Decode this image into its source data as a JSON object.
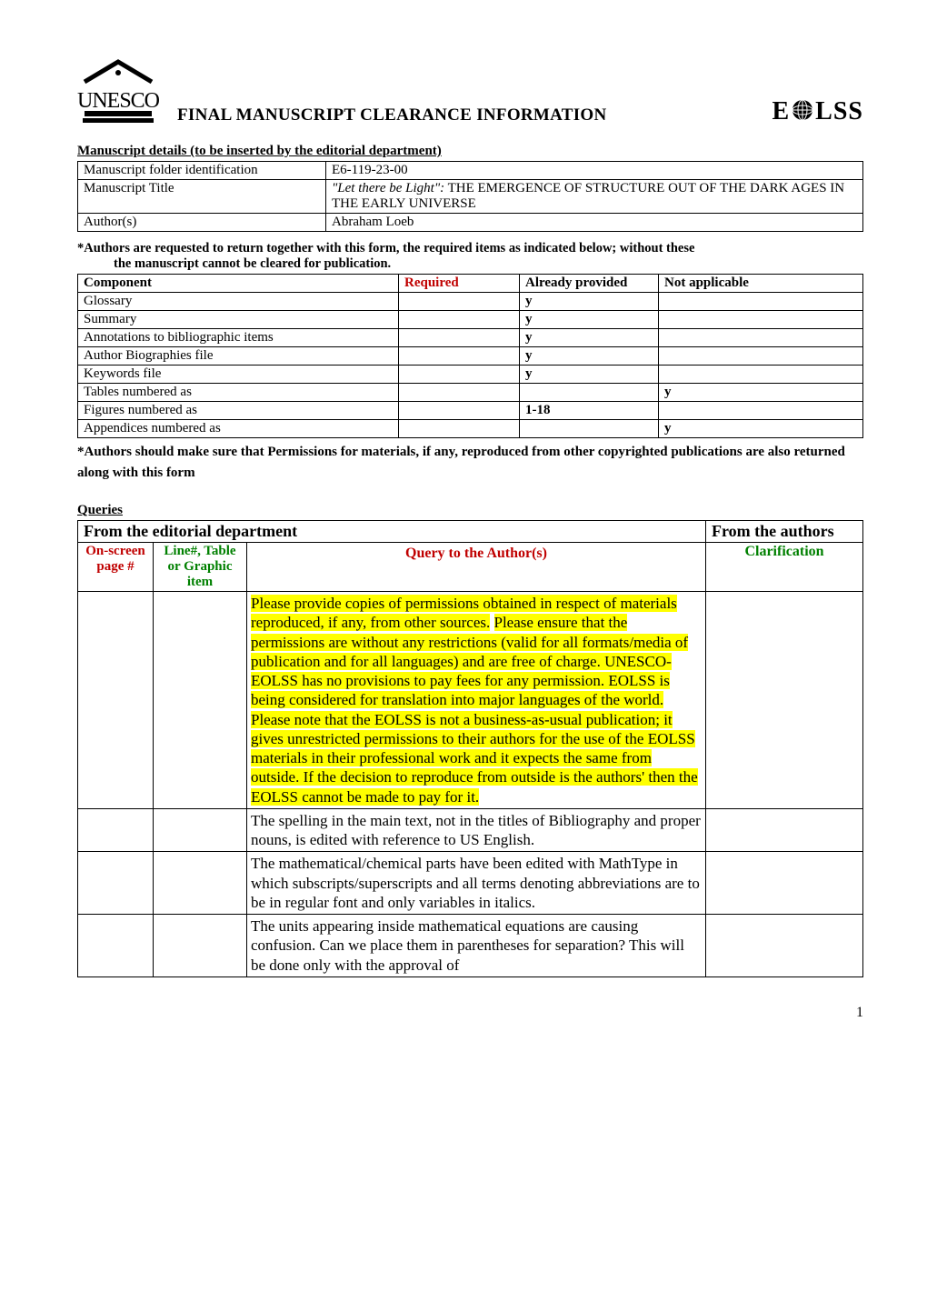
{
  "header": {
    "page_title": "FINAL MANUSCRIPT CLEARANCE INFORMATION",
    "eolss_prefix": "E",
    "eolss_suffix": "LSS"
  },
  "details": {
    "heading": "Manuscript details (to be inserted by the editorial department)",
    "rows": [
      {
        "label": "Manuscript folder identification",
        "value": "E6-119-23-00"
      },
      {
        "label": "Manuscript Title",
        "value_italic": "\"Let there be Light\":",
        "value_rest": " THE EMERGENCE OF STRUCTURE OUT OF THE DARK AGES IN THE EARLY UNIVERSE"
      },
      {
        "label": "Author(s)",
        "value": "Abraham Loeb"
      }
    ]
  },
  "instructions": {
    "line1": "*Authors are requested to return together with this form, the required items as  indicated below; without these",
    "line2": "the manuscript cannot be cleared for publication."
  },
  "components": {
    "headers": [
      "Component",
      "Required",
      "Already provided",
      "Not applicable"
    ],
    "header_colors": [
      "#000000",
      "#c00000",
      "#000000",
      "#000000"
    ],
    "rows": [
      {
        "c0": "Glossary",
        "c1": "",
        "c2": "y",
        "c3": ""
      },
      {
        "c0": "Summary",
        "c1": "",
        "c2": "y",
        "c3": ""
      },
      {
        "c0": "Annotations to bibliographic items",
        "c1": "",
        "c2": "y",
        "c3": ""
      },
      {
        "c0": "Author Biographies file",
        "c1": "",
        "c2": "y",
        "c3": ""
      },
      {
        "c0": "Keywords file",
        "c1": "",
        "c2": "y",
        "c3": ""
      },
      {
        "c0": "Tables numbered as",
        "c1": "",
        "c2": "",
        "c3": "y"
      },
      {
        "c0": "Figures numbered as",
        "c1": "",
        "c2": "1-18",
        "c3": ""
      },
      {
        "c0": "Appendices numbered as",
        "c1": "",
        "c2": "",
        "c3": "y"
      }
    ]
  },
  "perm_note": "*Authors should make sure that Permissions for materials, if any,  reproduced from other copyrighted publications are also returned along with this form",
  "queries": {
    "label": "Queries",
    "from_editorial": "From the editorial department",
    "from_authors": "From the authors",
    "col_page": "On-screen page #",
    "col_line": "Line#, Table or Graphic item",
    "col_query": "Query to the Author(s)",
    "col_clarification": "Clarification",
    "rows": [
      {
        "page": "",
        "line": "",
        "segments": [
          {
            "text": "Please provide copies of permissions obtained in respect of materials reproduced, if any, from other sources.",
            "hl": true
          },
          {
            "text": " ",
            "hl": false
          },
          {
            "text": "Please ensure that the permissions are without any restrictions (valid for all formats/media of publication and for all languages) and are free of charge. UNESCO-EOLSS has no provisions to pay fees for any permission. EOLSS is being considered for translation into major languages of the world.",
            "hl": true
          },
          {
            "text": "\n",
            "hl": false
          },
          {
            "text": "Please note that the EOLSS is not a business-as-usual publication; it gives unrestricted permissions to their authors for the use of the EOLSS materials in their professional work and it expects the same from outside. If the decision to reproduce from outside is the authors' then the EOLSS cannot be made to pay for it.",
            "hl": true
          }
        ],
        "clarification": ""
      },
      {
        "page": "",
        "line": "",
        "segments": [
          {
            "text": "The spelling in the main text, not in the titles of Bibliography and proper nouns, is edited with reference to US English.",
            "hl": false
          }
        ],
        "clarification": ""
      },
      {
        "page": "",
        "line": "",
        "segments": [
          {
            "text": "The mathematical/chemical parts have been edited with MathType in which subscripts/superscripts and all terms denoting abbreviations are to be in regular font and only variables in italics.",
            "hl": false
          }
        ],
        "clarification": ""
      },
      {
        "page": "",
        "line": "",
        "segments": [
          {
            "text": "The units appearing inside mathematical equations are causing confusion. Can we place them in parentheses for separation? This will be done only with the approval of",
            "hl": false
          }
        ],
        "clarification": ""
      }
    ]
  },
  "page_number": "1"
}
